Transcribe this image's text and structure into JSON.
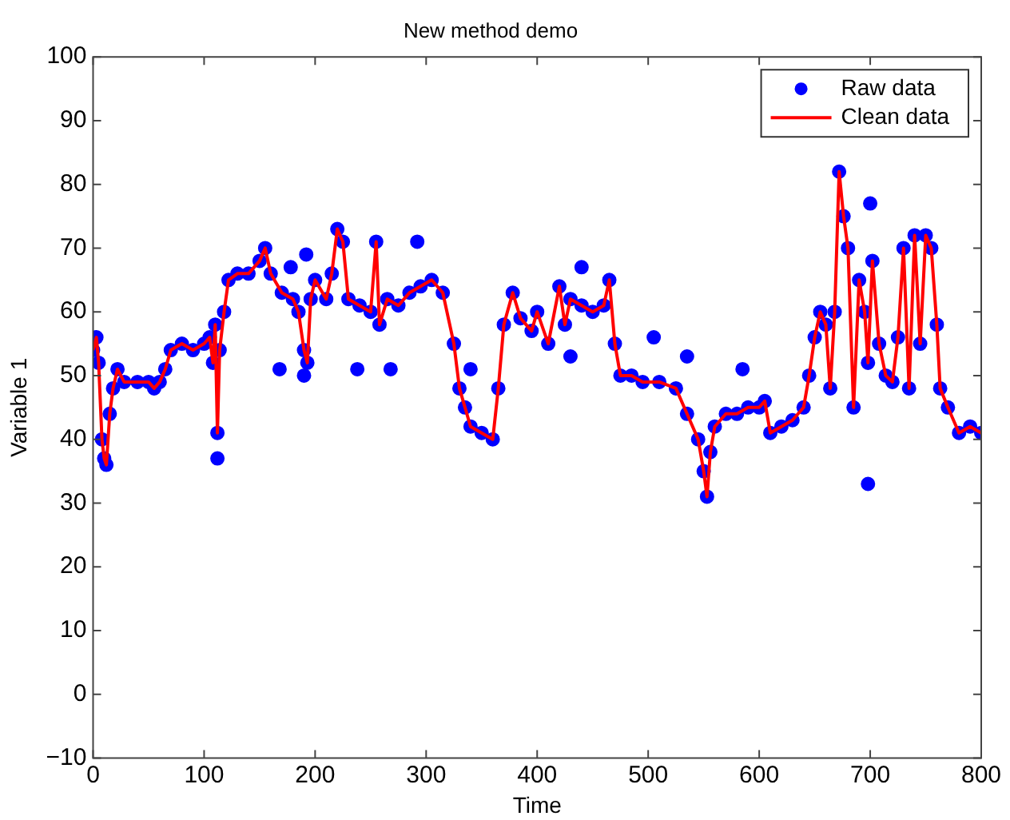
{
  "chart_data": {
    "type": "scatter",
    "title": "New method demo",
    "xlabel": "Time",
    "ylabel": "Variable 1",
    "xlim": [
      0,
      800
    ],
    "xticks": [
      0,
      100,
      200,
      300,
      400,
      500,
      600,
      700,
      800
    ],
    "ylim": [
      -10,
      100
    ],
    "yticks": [
      -10,
      0,
      10,
      20,
      30,
      40,
      50,
      60,
      70,
      80,
      90,
      100
    ],
    "grid": false,
    "legend": "top right",
    "series": [
      {
        "name": "Raw data",
        "type": "scatter",
        "marker": "circle",
        "color": "#0000ff",
        "x": [
          0,
          3,
          5,
          8,
          10,
          12,
          15,
          18,
          22,
          28,
          40,
          50,
          55,
          60,
          65,
          70,
          80,
          90,
          100,
          105,
          108,
          110,
          112,
          114,
          118,
          122,
          130,
          140,
          150,
          155,
          160,
          170,
          180,
          185,
          190,
          193,
          196,
          200,
          210,
          215,
          220,
          225,
          230,
          240,
          250,
          255,
          258,
          265,
          275,
          285,
          295,
          305,
          315,
          325,
          330,
          335,
          340,
          350,
          360,
          365,
          370,
          378,
          385,
          395,
          400,
          410,
          420,
          425,
          430,
          440,
          450,
          460,
          465,
          470,
          475,
          485,
          495,
          510,
          525,
          535,
          545,
          550,
          553,
          556,
          560,
          570,
          580,
          590,
          600,
          605,
          610,
          620,
          630,
          640,
          645,
          650,
          655,
          660,
          664,
          668,
          672,
          676,
          680,
          685,
          690,
          695,
          698,
          702,
          708,
          714,
          720,
          725,
          730,
          735,
          740,
          745,
          750,
          755,
          760,
          763,
          770,
          780,
          790,
          800,
          112,
          168,
          190,
          192,
          178,
          238,
          268,
          292,
          340,
          440,
          430,
          505,
          535,
          585,
          698,
          700
        ],
        "values": [
          54,
          56,
          52,
          40,
          37,
          36,
          44,
          48,
          51,
          49,
          49,
          49,
          48,
          49,
          51,
          54,
          55,
          54,
          55,
          56,
          52,
          58,
          41,
          54,
          60,
          65,
          66,
          66,
          68,
          70,
          66,
          63,
          62,
          60,
          54,
          52,
          62,
          65,
          62,
          66,
          73,
          71,
          62,
          61,
          60,
          71,
          58,
          62,
          61,
          63,
          64,
          65,
          63,
          55,
          48,
          45,
          42,
          41,
          40,
          48,
          58,
          63,
          59,
          57,
          60,
          55,
          64,
          58,
          62,
          61,
          60,
          61,
          65,
          55,
          50,
          50,
          49,
          49,
          48,
          44,
          40,
          35,
          31,
          38,
          42,
          44,
          44,
          45,
          45,
          46,
          41,
          42,
          43,
          45,
          50,
          56,
          60,
          58,
          48,
          60,
          82,
          75,
          70,
          45,
          65,
          60,
          52,
          68,
          55,
          50,
          49,
          56,
          70,
          48,
          72,
          55,
          72,
          70,
          58,
          48,
          45,
          41,
          42,
          41,
          37,
          51,
          50,
          69,
          67,
          51,
          51,
          71,
          51,
          67,
          53,
          56,
          53,
          51,
          33,
          77
        ]
      },
      {
        "name": "Clean data",
        "type": "line",
        "marker": "none",
        "color": "#ff0000",
        "x": [
          0,
          3,
          5,
          8,
          10,
          12,
          15,
          18,
          22,
          28,
          40,
          50,
          55,
          60,
          65,
          70,
          80,
          90,
          100,
          105,
          108,
          110,
          112,
          114,
          118,
          122,
          130,
          140,
          150,
          155,
          160,
          170,
          180,
          185,
          190,
          193,
          196,
          200,
          210,
          215,
          220,
          225,
          230,
          240,
          250,
          255,
          258,
          265,
          275,
          285,
          295,
          305,
          315,
          325,
          330,
          335,
          340,
          350,
          360,
          365,
          370,
          378,
          385,
          395,
          400,
          410,
          420,
          425,
          430,
          440,
          450,
          460,
          465,
          470,
          475,
          485,
          495,
          510,
          525,
          535,
          545,
          550,
          553,
          556,
          560,
          570,
          580,
          590,
          600,
          605,
          610,
          620,
          630,
          640,
          645,
          650,
          655,
          660,
          664,
          668,
          672,
          676,
          680,
          685,
          690,
          695,
          698,
          702,
          708,
          714,
          720,
          725,
          730,
          735,
          740,
          745,
          750,
          755,
          760,
          763,
          770,
          780,
          790,
          800
        ],
        "values": [
          54,
          56,
          52,
          40,
          37,
          36,
          44,
          48,
          51,
          49,
          49,
          49,
          48,
          49,
          51,
          54,
          55,
          54,
          55,
          56,
          52,
          58,
          41,
          54,
          60,
          65,
          66,
          66,
          68,
          70,
          66,
          63,
          62,
          60,
          54,
          52,
          62,
          65,
          62,
          66,
          73,
          71,
          62,
          61,
          60,
          71,
          58,
          62,
          61,
          63,
          64,
          65,
          63,
          55,
          48,
          45,
          42,
          41,
          40,
          48,
          58,
          63,
          59,
          57,
          60,
          55,
          64,
          58,
          62,
          61,
          60,
          61,
          65,
          55,
          50,
          50,
          49,
          49,
          48,
          44,
          40,
          35,
          31,
          38,
          42,
          44,
          44,
          45,
          45,
          46,
          41,
          42,
          43,
          45,
          50,
          56,
          60,
          58,
          48,
          60,
          82,
          75,
          70,
          45,
          65,
          60,
          52,
          68,
          55,
          50,
          49,
          56,
          70,
          48,
          72,
          55,
          72,
          70,
          58,
          48,
          45,
          41,
          42,
          41
        ]
      }
    ]
  }
}
